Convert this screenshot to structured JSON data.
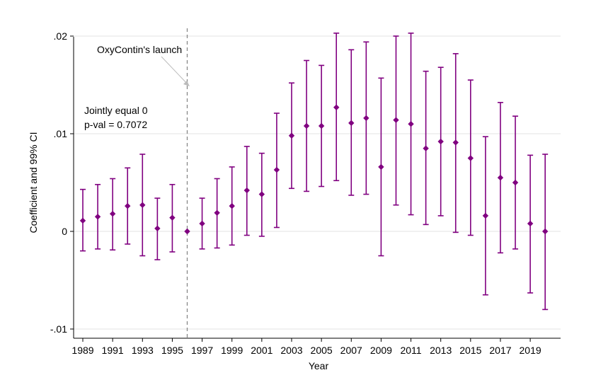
{
  "chart_data": {
    "type": "scatter",
    "title": "",
    "xlabel": "Year",
    "ylabel": "Coefficient and 99% CI",
    "xlim": [
      1989,
      2020
    ],
    "ylim": [
      -0.01,
      0.02
    ],
    "grid": true,
    "legend": "none",
    "x_tick_labels": [
      "1989",
      "1991",
      "1993",
      "1995",
      "1997",
      "1999",
      "2001",
      "2003",
      "2005",
      "2007",
      "2009",
      "2011",
      "2013",
      "2015",
      "2017",
      "2019"
    ],
    "y_ticks": [
      {
        "value": -0.01,
        "label": "-.01"
      },
      {
        "value": 0,
        "label": "0"
      },
      {
        "value": 0.01,
        "label": ".01"
      },
      {
        "value": 0.02,
        "label": ".02"
      }
    ],
    "series": [
      {
        "name": "Coefficient",
        "color": "#800080",
        "points": [
          {
            "x": 1989,
            "y": 0.0011,
            "lo": -0.002,
            "hi": 0.0043
          },
          {
            "x": 1990,
            "y": 0.0015,
            "lo": -0.0018,
            "hi": 0.0048
          },
          {
            "x": 1991,
            "y": 0.0018,
            "lo": -0.0019,
            "hi": 0.0054
          },
          {
            "x": 1992,
            "y": 0.0026,
            "lo": -0.0013,
            "hi": 0.0065
          },
          {
            "x": 1993,
            "y": 0.0027,
            "lo": -0.0025,
            "hi": 0.0079
          },
          {
            "x": 1994,
            "y": 0.0003,
            "lo": -0.0029,
            "hi": 0.0034
          },
          {
            "x": 1995,
            "y": 0.0014,
            "lo": -0.0021,
            "hi": 0.0048
          },
          {
            "x": 1996,
            "y": 0.0,
            "lo": 0.0,
            "hi": 0.0
          },
          {
            "x": 1997,
            "y": 0.0008,
            "lo": -0.0018,
            "hi": 0.0034
          },
          {
            "x": 1998,
            "y": 0.0019,
            "lo": -0.0017,
            "hi": 0.0054
          },
          {
            "x": 1999,
            "y": 0.0026,
            "lo": -0.0014,
            "hi": 0.0066
          },
          {
            "x": 2000,
            "y": 0.0042,
            "lo": -0.0004,
            "hi": 0.0087
          },
          {
            "x": 2001,
            "y": 0.0038,
            "lo": -0.0005,
            "hi": 0.008
          },
          {
            "x": 2002,
            "y": 0.0063,
            "lo": 0.0004,
            "hi": 0.0121
          },
          {
            "x": 2003,
            "y": 0.0098,
            "lo": 0.0044,
            "hi": 0.0152
          },
          {
            "x": 2004,
            "y": 0.0108,
            "lo": 0.0041,
            "hi": 0.0175
          },
          {
            "x": 2005,
            "y": 0.0108,
            "lo": 0.0046,
            "hi": 0.017
          },
          {
            "x": 2006,
            "y": 0.0127,
            "lo": 0.0052,
            "hi": 0.0203
          },
          {
            "x": 2007,
            "y": 0.0111,
            "lo": 0.0037,
            "hi": 0.0186
          },
          {
            "x": 2008,
            "y": 0.0116,
            "lo": 0.0038,
            "hi": 0.0194
          },
          {
            "x": 2009,
            "y": 0.0066,
            "lo": -0.0025,
            "hi": 0.0157
          },
          {
            "x": 2010,
            "y": 0.0114,
            "lo": 0.0027,
            "hi": 0.02
          },
          {
            "x": 2011,
            "y": 0.011,
            "lo": 0.0017,
            "hi": 0.0203
          },
          {
            "x": 2012,
            "y": 0.0085,
            "lo": 0.0007,
            "hi": 0.0164
          },
          {
            "x": 2013,
            "y": 0.0092,
            "lo": 0.0016,
            "hi": 0.0168
          },
          {
            "x": 2014,
            "y": 0.0091,
            "lo": -0.0001,
            "hi": 0.0182
          },
          {
            "x": 2015,
            "y": 0.0075,
            "lo": -0.0004,
            "hi": 0.0155
          },
          {
            "x": 2016,
            "y": 0.0016,
            "lo": -0.0065,
            "hi": 0.0097
          },
          {
            "x": 2017,
            "y": 0.0055,
            "lo": -0.0022,
            "hi": 0.0132
          },
          {
            "x": 2018,
            "y": 0.005,
            "lo": -0.0018,
            "hi": 0.0118
          },
          {
            "x": 2019,
            "y": 0.0008,
            "lo": -0.0063,
            "hi": 0.0078
          },
          {
            "x": 2020,
            "y": 0.0,
            "lo": -0.008,
            "hi": 0.0079
          }
        ]
      }
    ],
    "reference_line": {
      "x": 1996,
      "style": "dashed",
      "color": "#888888"
    },
    "annotations": {
      "launch_label": "OxyContin's launch",
      "joint_test_line1": "Jointly equal 0",
      "joint_test_line2": "p-val = 0.7072"
    }
  }
}
